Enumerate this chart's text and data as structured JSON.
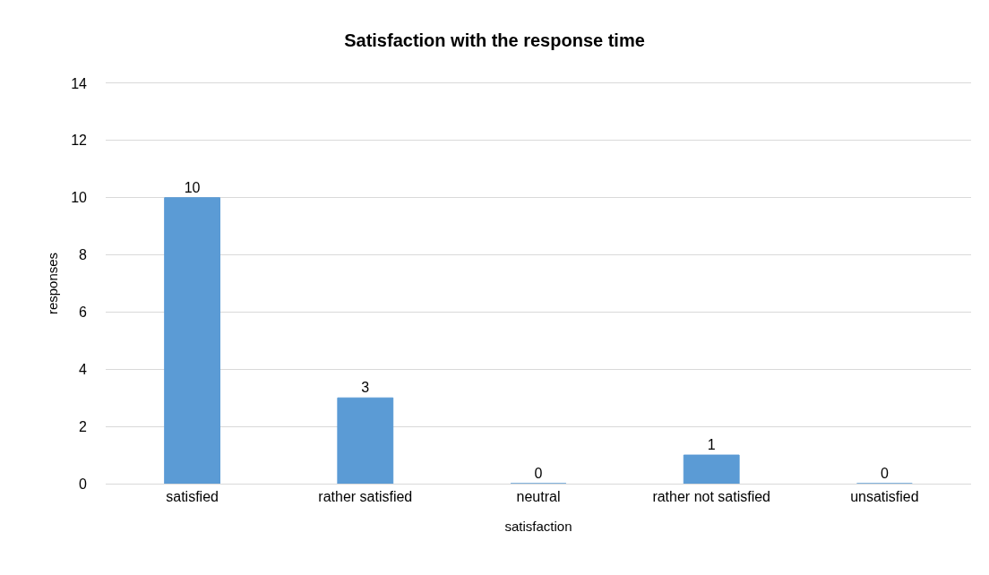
{
  "chart_data": {
    "type": "bar",
    "title": "Satisfaction with the response time",
    "xlabel": "satisfaction",
    "ylabel": "responses",
    "categories": [
      "satisfied",
      "rather satisfied",
      "neutral",
      "rather not satisfied",
      "unsatisfied"
    ],
    "values": [
      10,
      3,
      0,
      1,
      0
    ],
    "color": "#5b9bd5",
    "ylim": [
      0,
      14
    ],
    "yticks": [
      0,
      2,
      4,
      6,
      8,
      10,
      12,
      14
    ],
    "grid": "y",
    "data_labels": true
  }
}
